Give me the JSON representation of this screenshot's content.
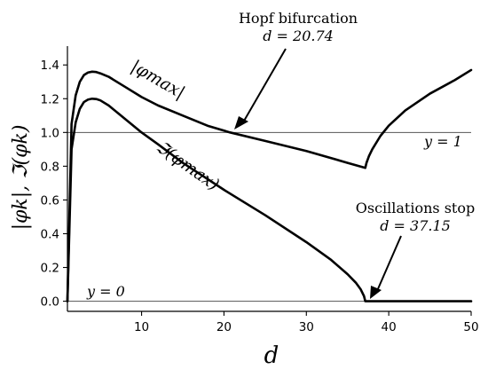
{
  "chart_data": {
    "type": "line",
    "xlabel": "d",
    "ylabel": "|φk|, ℑ(φk)",
    "xlim": [
      1,
      50
    ],
    "ylim": [
      -0.06,
      1.48
    ],
    "xticks": [
      10,
      20,
      30,
      40,
      50
    ],
    "yticks": [
      0.0,
      0.2,
      0.4,
      0.6,
      0.8,
      1.0,
      1.2,
      1.4
    ],
    "xtick_labels": [
      "10",
      "20",
      "30",
      "40",
      "50"
    ],
    "ytick_labels": [
      "0.0",
      "0.2",
      "0.4",
      "0.6",
      "0.8",
      "1.0",
      "1.2",
      "1.4"
    ],
    "grid": false,
    "legend": "none",
    "reference_lines": [
      {
        "y": 1,
        "label": "y = 1"
      },
      {
        "y": 0,
        "label": "y = 0"
      }
    ],
    "series": [
      {
        "name": "|φmax|",
        "x": [
          1,
          1.5,
          2,
          2.5,
          3,
          3.5,
          4,
          4.5,
          5,
          6,
          8,
          10,
          12,
          15,
          18,
          20.74,
          25,
          30,
          35,
          37.15,
          37.3,
          37.6,
          38,
          39,
          40,
          42,
          45,
          48,
          50
        ],
        "y": [
          0,
          1.05,
          1.22,
          1.3,
          1.34,
          1.355,
          1.36,
          1.358,
          1.35,
          1.33,
          1.27,
          1.21,
          1.16,
          1.1,
          1.04,
          1.0,
          0.95,
          0.89,
          0.82,
          0.79,
          0.82,
          0.86,
          0.9,
          0.98,
          1.04,
          1.13,
          1.23,
          1.31,
          1.37
        ]
      },
      {
        "name": "ℑ(φmax)",
        "x": [
          1,
          1.5,
          2,
          2.5,
          3,
          3.5,
          4,
          4.5,
          5,
          6,
          8,
          10,
          12,
          15,
          20,
          25,
          30,
          33,
          35,
          36,
          36.6,
          37.0,
          37.15,
          37.3,
          40,
          45,
          50
        ],
        "y": [
          0,
          0.9,
          1.06,
          1.14,
          1.18,
          1.195,
          1.2,
          1.198,
          1.19,
          1.16,
          1.08,
          1.0,
          0.93,
          0.82,
          0.66,
          0.51,
          0.35,
          0.245,
          0.16,
          0.11,
          0.07,
          0.03,
          0.0,
          0.0,
          0.0,
          0.0,
          0.0
        ]
      }
    ],
    "annotations": [
      {
        "id": "hopf",
        "lines": [
          "Hopf bifurcation",
          "d = 20.74"
        ],
        "point": [
          20.74,
          1.0
        ]
      },
      {
        "id": "stop",
        "lines": [
          "Oscillations stop",
          "d = 37.15"
        ],
        "point": [
          37.15,
          0.0
        ]
      }
    ]
  }
}
